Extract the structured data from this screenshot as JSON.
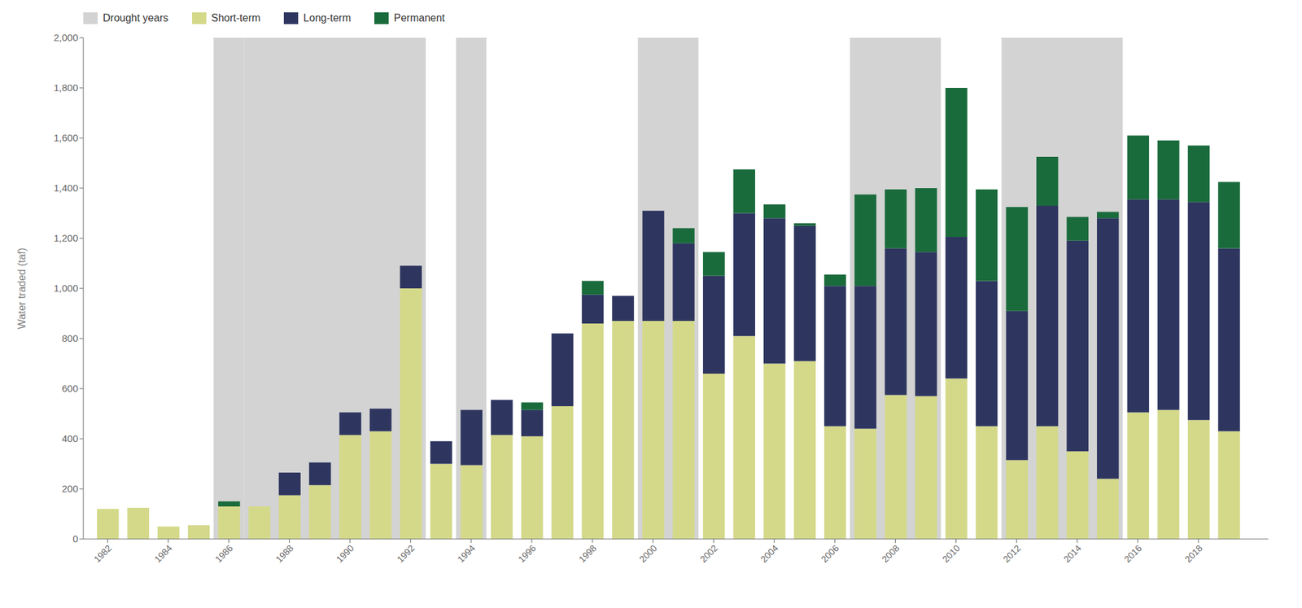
{
  "chart_data": {
    "type": "bar",
    "stacked": true,
    "grid": false,
    "legend": "upper left",
    "ylabel": "Water traded (taf)",
    "x": [
      1982,
      1983,
      1984,
      1985,
      1986,
      1987,
      1988,
      1989,
      1990,
      1991,
      1992,
      1993,
      1994,
      1995,
      1996,
      1997,
      1998,
      1999,
      2000,
      2001,
      2002,
      2003,
      2004,
      2005,
      2006,
      2007,
      2008,
      2009,
      2010,
      2011,
      2012,
      2013,
      2014,
      2015,
      2016,
      2017,
      2018,
      2019
    ],
    "xlim": [
      1981.2,
      2020.3
    ],
    "xticks": [
      1982,
      1984,
      1986,
      1988,
      1990,
      1992,
      1994,
      1996,
      1998,
      2000,
      2002,
      2004,
      2006,
      2008,
      2010,
      2012,
      2014,
      2016,
      2018
    ],
    "ylim": [
      0,
      2000
    ],
    "yticks": [
      0,
      200,
      400,
      600,
      800,
      {
        "value": 1000,
        "label": "1,000"
      },
      {
        "value": 1200,
        "label": "1,200"
      },
      {
        "value": 1400,
        "label": "1,400"
      },
      {
        "value": 1600,
        "label": "1,600"
      },
      {
        "value": 1800,
        "label": "1,800"
      },
      {
        "value": 2000,
        "label": "2,000"
      }
    ],
    "drought": {
      "name": "Drought years",
      "color": "#d3d3d3",
      "ranges": [
        [
          1986,
          1986
        ],
        [
          1987,
          1992
        ],
        [
          1994,
          1994
        ],
        [
          2000,
          2001
        ],
        [
          2007,
          2009
        ],
        [
          2012,
          2015
        ]
      ]
    },
    "series": [
      {
        "name": "Short-term",
        "color": "#d4d98a",
        "values": [
          120,
          125,
          50,
          55,
          130,
          130,
          175,
          215,
          415,
          430,
          1000,
          300,
          295,
          415,
          410,
          530,
          860,
          870,
          870,
          870,
          660,
          810,
          700,
          710,
          450,
          440,
          575,
          570,
          640,
          450,
          315,
          450,
          350,
          240,
          505,
          515,
          475,
          430
        ]
      },
      {
        "name": "Long-term",
        "color": "#2e3660",
        "values": [
          0,
          0,
          0,
          0,
          0,
          0,
          90,
          90,
          90,
          90,
          90,
          90,
          220,
          140,
          105,
          290,
          115,
          100,
          440,
          310,
          390,
          490,
          580,
          540,
          560,
          570,
          585,
          575,
          565,
          580,
          595,
          880,
          840,
          1040,
          850,
          840,
          870,
          730
        ]
      },
      {
        "name": "Permanent",
        "color": "#1a6b3c",
        "values": [
          0,
          0,
          0,
          0,
          20,
          0,
          0,
          0,
          0,
          0,
          0,
          0,
          0,
          0,
          30,
          0,
          55,
          0,
          0,
          60,
          95,
          175,
          55,
          10,
          45,
          365,
          235,
          255,
          595,
          365,
          415,
          195,
          95,
          25,
          255,
          235,
          225,
          265
        ]
      }
    ]
  }
}
